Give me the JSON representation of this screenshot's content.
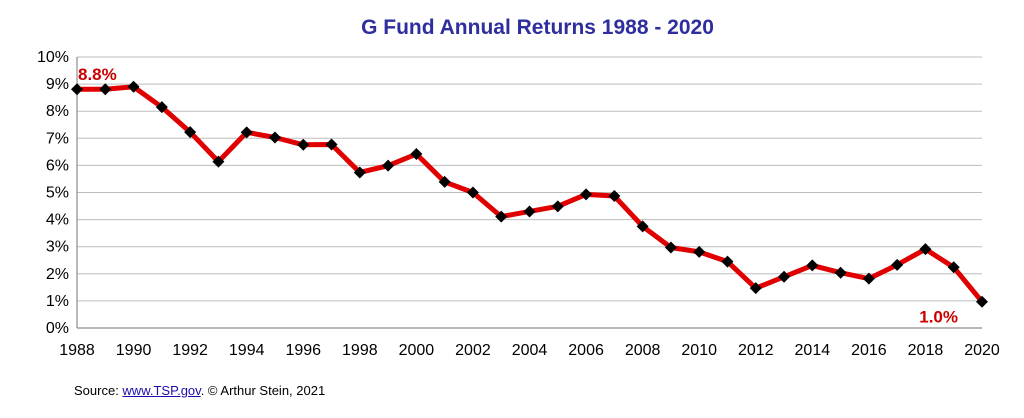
{
  "chart_data": {
    "type": "line",
    "title": "G Fund Annual Returns 1988 - 2020",
    "xlabel": "",
    "ylabel": "",
    "x": [
      1988,
      1989,
      1990,
      1991,
      1992,
      1993,
      1994,
      1995,
      1996,
      1997,
      1998,
      1999,
      2000,
      2001,
      2002,
      2003,
      2004,
      2005,
      2006,
      2007,
      2008,
      2009,
      2010,
      2011,
      2012,
      2013,
      2014,
      2015,
      2016,
      2017,
      2018,
      2019,
      2020
    ],
    "series": [
      {
        "values": [
          8.81,
          8.81,
          8.9,
          8.15,
          7.23,
          6.14,
          7.22,
          7.03,
          6.76,
          6.77,
          5.74,
          5.99,
          6.42,
          5.39,
          5.0,
          4.11,
          4.3,
          4.49,
          4.93,
          4.87,
          3.75,
          2.97,
          2.81,
          2.45,
          1.47,
          1.89,
          2.31,
          2.04,
          1.82,
          2.33,
          2.91,
          2.24,
          0.97
        ],
        "color": "#e00000",
        "marker_color": "#000000"
      }
    ],
    "xlim": [
      1988,
      2020
    ],
    "ylim": [
      0,
      10
    ],
    "x_ticks": [
      "1988",
      "1990",
      "1992",
      "1994",
      "1996",
      "1998",
      "2000",
      "2002",
      "2004",
      "2006",
      "2008",
      "2010",
      "2012",
      "2014",
      "2016",
      "2018",
      "2020"
    ],
    "y_ticks": [
      "0%",
      "1%",
      "2%",
      "3%",
      "4%",
      "5%",
      "6%",
      "7%",
      "8%",
      "9%",
      "10%"
    ],
    "grid": true,
    "annotations": [
      {
        "text": "8.8%",
        "x": 1988,
        "y": 8.81,
        "color": "#cc0000"
      },
      {
        "text": "1.0%",
        "x": 2020,
        "y": 0.97,
        "color": "#cc0000"
      }
    ],
    "title_color": "#2e2e9e"
  },
  "source": {
    "prefix": "Source: ",
    "link_text": "www.TSP.gov",
    "suffix": ". © Arthur Stein, 2021"
  }
}
